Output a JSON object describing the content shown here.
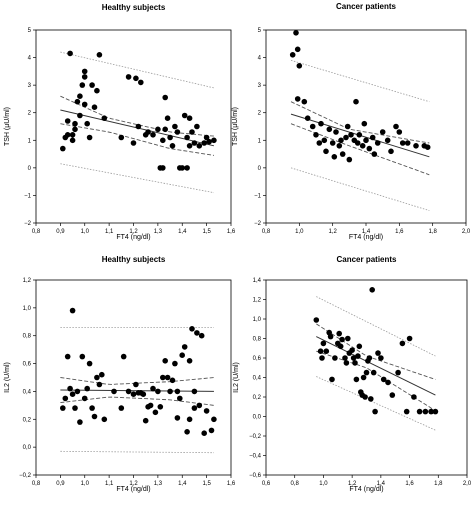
{
  "chart_data": [
    {
      "type": "scatter",
      "title": "Healthy subjects",
      "xlabel": "FT4 (ng/dl)",
      "ylabel": "TSH (µU/ml)",
      "xlim": [
        0.8,
        1.6
      ],
      "ylim": [
        -2,
        5
      ],
      "xticks": [
        "0,8",
        "0,9",
        "1,0",
        "1,1",
        "1,2",
        "1,3",
        "1,4",
        "1,5",
        "1,6"
      ],
      "yticks": [
        "−2",
        "−1",
        "0",
        "1",
        "2",
        "3",
        "4",
        "5"
      ],
      "grid": false,
      "fit": {
        "x": [
          0.9,
          1.53
        ],
        "y": [
          2.1,
          0.8
        ]
      },
      "confidence_band": {
        "upper": [
          2.6,
          1.8,
          1.3,
          1.15
        ],
        "lower": [
          1.6,
          1.3,
          0.7,
          0.45
        ],
        "x": [
          0.9,
          1.1,
          1.35,
          1.53
        ]
      },
      "prediction_band": {
        "upper": [
          4.2,
          2.9
        ],
        "lower": [
          0.15,
          -0.9
        ],
        "x": [
          0.9,
          1.53
        ]
      },
      "points": [
        [
          0.91,
          0.7
        ],
        [
          0.92,
          1.1
        ],
        [
          0.93,
          1.2
        ],
        [
          0.93,
          1.7
        ],
        [
          0.94,
          4.15
        ],
        [
          0.95,
          1.0
        ],
        [
          0.95,
          1.2
        ],
        [
          0.96,
          1.4
        ],
        [
          0.96,
          1.6
        ],
        [
          0.97,
          2.4
        ],
        [
          0.98,
          2.6
        ],
        [
          0.98,
          1.9
        ],
        [
          0.99,
          3.0
        ],
        [
          1.0,
          3.3
        ],
        [
          1.0,
          3.5
        ],
        [
          1.0,
          2.3
        ],
        [
          1.01,
          1.6
        ],
        [
          1.02,
          1.1
        ],
        [
          1.03,
          3.0
        ],
        [
          1.04,
          2.2
        ],
        [
          1.05,
          2.8
        ],
        [
          1.06,
          4.1
        ],
        [
          1.08,
          1.8
        ],
        [
          1.15,
          1.1
        ],
        [
          1.18,
          3.3
        ],
        [
          1.2,
          0.9
        ],
        [
          1.21,
          3.25
        ],
        [
          1.22,
          1.5
        ],
        [
          1.23,
          3.1
        ],
        [
          1.25,
          1.2
        ],
        [
          1.26,
          1.3
        ],
        [
          1.28,
          1.2
        ],
        [
          1.3,
          1.4
        ],
        [
          1.31,
          0.0
        ],
        [
          1.32,
          0.0
        ],
        [
          1.32,
          1.0
        ],
        [
          1.33,
          2.55
        ],
        [
          1.33,
          1.4
        ],
        [
          1.34,
          1.8
        ],
        [
          1.35,
          1.1
        ],
        [
          1.36,
          0.8
        ],
        [
          1.37,
          1.5
        ],
        [
          1.38,
          1.3
        ],
        [
          1.39,
          0.0
        ],
        [
          1.4,
          0.0
        ],
        [
          1.41,
          1.9
        ],
        [
          1.42,
          1.1
        ],
        [
          1.43,
          0.8
        ],
        [
          1.44,
          1.3
        ],
        [
          1.45,
          0.9
        ],
        [
          1.46,
          1.5
        ],
        [
          1.47,
          0.8
        ],
        [
          1.49,
          0.9
        ],
        [
          1.5,
          1.1
        ],
        [
          1.51,
          0.95
        ],
        [
          1.53,
          1.0
        ],
        [
          1.42,
          0.0
        ],
        [
          1.43,
          1.8
        ]
      ]
    },
    {
      "type": "scatter",
      "title": "Cancer patients",
      "xlabel": "FT4 (ng/dl)",
      "ylabel": "TSH (µU/ml)",
      "xlim": [
        0.8,
        2.0
      ],
      "ylim": [
        -2,
        5
      ],
      "xticks": [
        "0,8",
        "1,0",
        "1,2",
        "1,4",
        "1,6",
        "1,8",
        "2,0"
      ],
      "yticks": [
        "−2",
        "−1",
        "0",
        "1",
        "2",
        "3",
        "4",
        "5"
      ],
      "grid": false,
      "fit": {
        "x": [
          0.95,
          1.78
        ],
        "y": [
          1.95,
          0.4
        ]
      },
      "confidence_band": {
        "upper": [
          2.4,
          1.4,
          0.9
        ],
        "lower": [
          1.6,
          0.8,
          -0.25
        ],
        "x": [
          0.95,
          1.3,
          1.78
        ]
      },
      "prediction_band": {
        "upper": [
          3.9,
          2.4
        ],
        "lower": [
          0.0,
          -1.55
        ],
        "x": [
          0.95,
          1.78
        ]
      },
      "points": [
        [
          0.96,
          4.1
        ],
        [
          0.98,
          4.9
        ],
        [
          0.99,
          4.3
        ],
        [
          1.0,
          3.7
        ],
        [
          0.99,
          2.5
        ],
        [
          1.03,
          2.4
        ],
        [
          1.05,
          1.8
        ],
        [
          1.08,
          1.5
        ],
        [
          1.1,
          1.2
        ],
        [
          1.12,
          0.9
        ],
        [
          1.13,
          1.6
        ],
        [
          1.15,
          1.0
        ],
        [
          1.16,
          0.6
        ],
        [
          1.18,
          1.4
        ],
        [
          1.2,
          0.9
        ],
        [
          1.21,
          0.4
        ],
        [
          1.22,
          1.3
        ],
        [
          1.24,
          0.8
        ],
        [
          1.25,
          1.0
        ],
        [
          1.26,
          0.5
        ],
        [
          1.28,
          1.1
        ],
        [
          1.29,
          1.5
        ],
        [
          1.3,
          0.3
        ],
        [
          1.31,
          1.2
        ],
        [
          1.33,
          1.0
        ],
        [
          1.34,
          2.4
        ],
        [
          1.35,
          0.9
        ],
        [
          1.36,
          1.2
        ],
        [
          1.38,
          0.8
        ],
        [
          1.39,
          1.6
        ],
        [
          1.4,
          1.0
        ],
        [
          1.42,
          0.7
        ],
        [
          1.44,
          1.1
        ],
        [
          1.45,
          0.5
        ],
        [
          1.47,
          0.9
        ],
        [
          1.5,
          1.3
        ],
        [
          1.53,
          1.0
        ],
        [
          1.55,
          0.6
        ],
        [
          1.58,
          1.5
        ],
        [
          1.6,
          1.3
        ],
        [
          1.62,
          0.9
        ],
        [
          1.65,
          0.9
        ],
        [
          1.7,
          0.8
        ],
        [
          1.75,
          0.8
        ],
        [
          1.77,
          0.75
        ]
      ]
    },
    {
      "type": "scatter",
      "title": "Healthy subjects",
      "xlabel": "FT4 (ng/dl)",
      "ylabel": "IL2 (U/ml)",
      "xlim": [
        0.8,
        1.6
      ],
      "ylim": [
        -0.2,
        1.2
      ],
      "xticks": [
        "0,8",
        "0,9",
        "1,0",
        "1,1",
        "1,2",
        "1,3",
        "1,4",
        "1,5",
        "1,6"
      ],
      "yticks": [
        "−0,2",
        "0,0",
        "0,2",
        "0,4",
        "0,6",
        "0,8",
        "1,0",
        "1,2"
      ],
      "grid": false,
      "fit": {
        "x": [
          0.9,
          1.53
        ],
        "y": [
          0.41,
          0.4
        ]
      },
      "confidence_band": {
        "upper": [
          0.5,
          0.45,
          0.47,
          0.5
        ],
        "lower": [
          0.32,
          0.36,
          0.34,
          0.3
        ],
        "x": [
          0.9,
          1.1,
          1.35,
          1.53
        ]
      },
      "prediction_band": {
        "upper": [
          0.86,
          0.86
        ],
        "lower": [
          -0.03,
          -0.04
        ],
        "x": [
          0.9,
          1.53
        ]
      },
      "points": [
        [
          0.91,
          0.28
        ],
        [
          0.92,
          0.35
        ],
        [
          0.93,
          0.65
        ],
        [
          0.94,
          0.42
        ],
        [
          0.95,
          0.98
        ],
        [
          0.95,
          0.38
        ],
        [
          0.96,
          0.28
        ],
        [
          0.97,
          0.4
        ],
        [
          0.98,
          0.18
        ],
        [
          0.99,
          0.65
        ],
        [
          1.0,
          0.35
        ],
        [
          1.01,
          0.42
        ],
        [
          1.02,
          0.6
        ],
        [
          1.03,
          0.28
        ],
        [
          1.04,
          0.22
        ],
        [
          1.05,
          0.5
        ],
        [
          1.06,
          0.45
        ],
        [
          1.07,
          0.52
        ],
        [
          1.08,
          0.2
        ],
        [
          1.12,
          0.4
        ],
        [
          1.15,
          0.28
        ],
        [
          1.16,
          0.65
        ],
        [
          1.18,
          0.4
        ],
        [
          1.2,
          0.38
        ],
        [
          1.21,
          0.45
        ],
        [
          1.22,
          0.39
        ],
        [
          1.23,
          0.39
        ],
        [
          1.24,
          0.38
        ],
        [
          1.25,
          0.19
        ],
        [
          1.26,
          0.29
        ],
        [
          1.27,
          0.3
        ],
        [
          1.28,
          0.42
        ],
        [
          1.29,
          0.25
        ],
        [
          1.3,
          0.4
        ],
        [
          1.31,
          0.29
        ],
        [
          1.32,
          0.5
        ],
        [
          1.33,
          0.62
        ],
        [
          1.34,
          0.5
        ],
        [
          1.35,
          0.4
        ],
        [
          1.36,
          0.48
        ],
        [
          1.37,
          0.6
        ],
        [
          1.38,
          0.21
        ],
        [
          1.38,
          0.4
        ],
        [
          1.39,
          0.35
        ],
        [
          1.4,
          0.66
        ],
        [
          1.41,
          0.72
        ],
        [
          1.42,
          0.11
        ],
        [
          1.43,
          0.62
        ],
        [
          1.44,
          0.85
        ],
        [
          1.45,
          0.4
        ],
        [
          1.46,
          0.82
        ],
        [
          1.47,
          0.3
        ],
        [
          1.48,
          0.8
        ],
        [
          1.49,
          0.1
        ],
        [
          1.5,
          0.26
        ],
        [
          1.52,
          0.12
        ],
        [
          1.53,
          0.2
        ],
        [
          1.45,
          0.28
        ],
        [
          1.43,
          0.2
        ]
      ]
    },
    {
      "type": "scatter",
      "title": "Cancer patients",
      "xlabel": "FT4 (ng/dl)",
      "ylabel": "IL2 (U/ml)",
      "xlim": [
        0.6,
        2.0
      ],
      "ylim": [
        -0.6,
        1.4
      ],
      "xticks": [
        "0,6",
        "0,8",
        "1,0",
        "1,2",
        "1,4",
        "1,6",
        "1,8",
        "2,0"
      ],
      "yticks": [
        "−0,6",
        "−0,4",
        "−0,2",
        "0,0",
        "0,2",
        "0,4",
        "0,6",
        "0,8",
        "1,0",
        "1,2",
        "1,4"
      ],
      "grid": false,
      "fit": {
        "x": [
          0.95,
          1.78
        ],
        "y": [
          0.82,
          0.22
        ]
      },
      "confidence_band": {
        "upper": [
          0.95,
          0.62,
          0.38
        ],
        "lower": [
          0.67,
          0.5,
          0.06
        ],
        "x": [
          0.95,
          1.3,
          1.78
        ]
      },
      "prediction_band": {
        "upper": [
          1.23,
          0.62
        ],
        "lower": [
          0.41,
          -0.14
        ],
        "x": [
          0.95,
          1.78
        ]
      },
      "points": [
        [
          0.95,
          0.99
        ],
        [
          0.98,
          0.67
        ],
        [
          0.99,
          0.6
        ],
        [
          1.0,
          0.75
        ],
        [
          1.02,
          0.67
        ],
        [
          1.04,
          0.86
        ],
        [
          1.05,
          0.82
        ],
        [
          1.06,
          0.38
        ],
        [
          1.08,
          0.6
        ],
        [
          1.1,
          0.75
        ],
        [
          1.11,
          0.85
        ],
        [
          1.12,
          0.72
        ],
        [
          1.13,
          0.79
        ],
        [
          1.15,
          0.6
        ],
        [
          1.16,
          0.55
        ],
        [
          1.17,
          0.8
        ],
        [
          1.18,
          0.65
        ],
        [
          1.2,
          0.68
        ],
        [
          1.21,
          0.6
        ],
        [
          1.22,
          0.55
        ],
        [
          1.23,
          0.38
        ],
        [
          1.24,
          0.62
        ],
        [
          1.25,
          0.72
        ],
        [
          1.26,
          0.25
        ],
        [
          1.27,
          0.22
        ],
        [
          1.28,
          0.4
        ],
        [
          1.29,
          0.2
        ],
        [
          1.3,
          0.45
        ],
        [
          1.31,
          0.57
        ],
        [
          1.32,
          0.6
        ],
        [
          1.33,
          0.18
        ],
        [
          1.34,
          1.3
        ],
        [
          1.35,
          0.45
        ],
        [
          1.36,
          0.05
        ],
        [
          1.38,
          0.65
        ],
        [
          1.4,
          0.6
        ],
        [
          1.42,
          0.38
        ],
        [
          1.45,
          0.35
        ],
        [
          1.48,
          0.22
        ],
        [
          1.52,
          0.45
        ],
        [
          1.55,
          0.75
        ],
        [
          1.58,
          0.05
        ],
        [
          1.6,
          0.8
        ],
        [
          1.63,
          0.2
        ],
        [
          1.67,
          0.05
        ],
        [
          1.71,
          0.05
        ],
        [
          1.75,
          0.05
        ],
        [
          1.78,
          0.05
        ]
      ]
    }
  ]
}
